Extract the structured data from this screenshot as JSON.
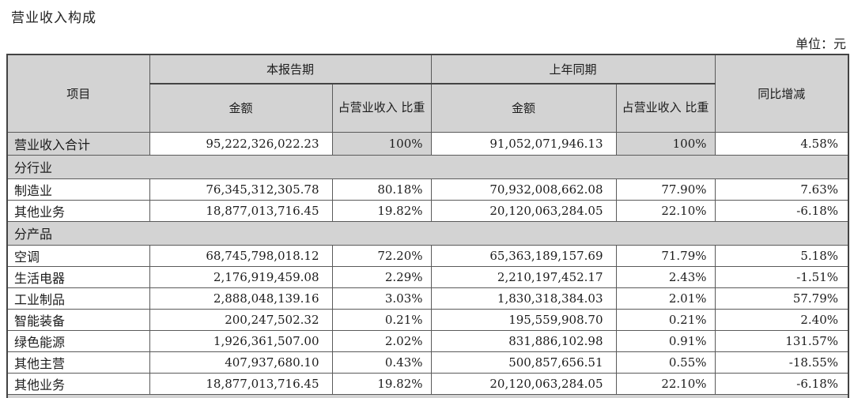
{
  "page": {
    "title": "营业收入构成",
    "unit_label": "单位：元"
  },
  "colors": {
    "header_bg": "#d3d3d3",
    "shaded_bg": "#d3d3d3",
    "border_color": "#5a5a5a",
    "border_strong": "#434343"
  },
  "table": {
    "header": {
      "item": "项目",
      "current_period": "本报告期",
      "prior_period": "上年同期",
      "amount_current": "金额",
      "pct_current": "占营业收入\n比重",
      "amount_prior": "金额",
      "pct_prior": "占营业收入\n比重",
      "yoy_change": "同比增减"
    },
    "rows": [
      {
        "type": "data",
        "shaded": true,
        "label": "营业收入合计",
        "current_amount": "95,222,326,022.23",
        "current_pct": "100%",
        "prior_amount": "91,052,071,946.13",
        "prior_pct": "100%",
        "yoy": "4.58%"
      },
      {
        "type": "section",
        "label": "分行业"
      },
      {
        "type": "data",
        "label": "制造业",
        "current_amount": "76,345,312,305.78",
        "current_pct": "80.18%",
        "prior_amount": "70,932,008,662.08",
        "prior_pct": "77.90%",
        "yoy": "7.63%"
      },
      {
        "type": "data",
        "label": "其他业务",
        "current_amount": "18,877,013,716.45",
        "current_pct": "19.82%",
        "prior_amount": "20,120,063,284.05",
        "prior_pct": "22.10%",
        "yoy": "-6.18%"
      },
      {
        "type": "section",
        "label": "分产品"
      },
      {
        "type": "data",
        "label": "空调",
        "current_amount": "68,745,798,018.12",
        "current_pct": "72.20%",
        "prior_amount": "65,363,189,157.69",
        "prior_pct": "71.79%",
        "yoy": "5.18%"
      },
      {
        "type": "data",
        "label": "生活电器",
        "current_amount": "2,176,919,459.08",
        "current_pct": "2.29%",
        "prior_amount": "2,210,197,452.17",
        "prior_pct": "2.43%",
        "yoy": "-1.51%"
      },
      {
        "type": "data",
        "label": "工业制品",
        "current_amount": "2,888,048,139.16",
        "current_pct": "3.03%",
        "prior_amount": "1,830,318,384.03",
        "prior_pct": "2.01%",
        "yoy": "57.79%"
      },
      {
        "type": "data",
        "label": "智能装备",
        "current_amount": "200,247,502.32",
        "current_pct": "0.21%",
        "prior_amount": "195,559,908.70",
        "prior_pct": "0.21%",
        "yoy": "2.40%"
      },
      {
        "type": "data",
        "label": "绿色能源",
        "current_amount": "1,926,361,507.00",
        "current_pct": "2.02%",
        "prior_amount": "831,886,102.98",
        "prior_pct": "0.91%",
        "yoy": "131.57%"
      },
      {
        "type": "data",
        "label": "其他主营",
        "current_amount": "407,937,680.10",
        "current_pct": "0.43%",
        "prior_amount": "500,857,656.51",
        "prior_pct": "0.55%",
        "yoy": "-18.55%"
      },
      {
        "type": "data",
        "label": "其他业务",
        "current_amount": "18,877,013,716.45",
        "current_pct": "19.82%",
        "prior_amount": "20,120,063,284.05",
        "prior_pct": "22.10%",
        "yoy": "-6.18%"
      },
      {
        "type": "section",
        "partial": true,
        "label": ""
      }
    ]
  }
}
